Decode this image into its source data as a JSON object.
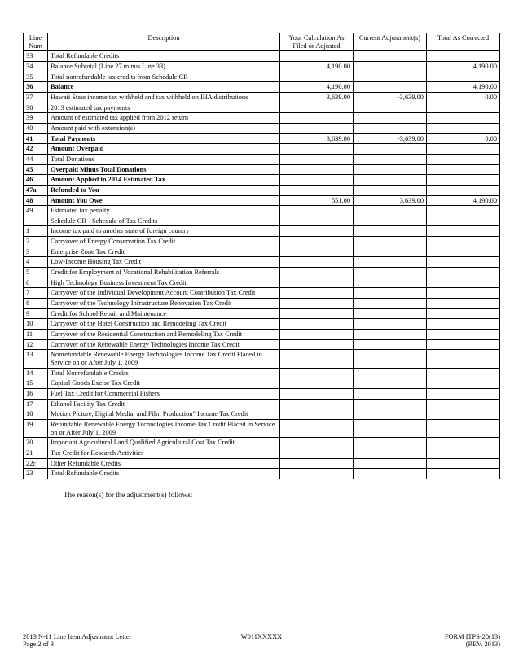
{
  "columns": {
    "line": "Line Num",
    "desc": "Description",
    "yc": "Your Calculation As Filed or Adjusted",
    "ca": "Current Adjustment(s)",
    "tc": "Total As Corrected"
  },
  "rows": [
    {
      "line": "33",
      "desc": "Total Refundable Credits"
    },
    {
      "line": "34",
      "desc": "Balance Subtotal (Line 27 minus Line 33)",
      "yc": "4,190.00",
      "tc": "4,190.00"
    },
    {
      "line": "35",
      "desc": "Total nonrefundable tax credits from Schedule CR"
    },
    {
      "line": "36",
      "desc": "Balance",
      "bold": true,
      "indent": true,
      "yc": "4,190.00",
      "tc": "4,190.00"
    },
    {
      "line": "37",
      "desc": "Hawaii State income tax withheld and tax withheld on IHA distributions",
      "yc": "3,639.00",
      "ca": "-3,639.00",
      "tc": "0.00"
    },
    {
      "line": "38",
      "desc": "2013 estimated tax payments"
    },
    {
      "line": "39",
      "desc": "Amount of estimated tax applied from 2012 return"
    },
    {
      "line": "40",
      "desc": "Amount paid with extension(s)"
    },
    {
      "line": "41",
      "desc": "Total Payments",
      "bold": true,
      "indent": true,
      "yc": "3,639.00",
      "ca": "-3,639.00",
      "tc": "0.00"
    },
    {
      "line": "42",
      "desc": "Amount Overpaid",
      "bold": true,
      "indent": true
    },
    {
      "line": "44",
      "desc": "Total Donations"
    },
    {
      "line": "45",
      "desc": "Overpaid Minus Total Donations",
      "bold": true,
      "indent": true
    },
    {
      "line": "46",
      "desc": "Amount Applied to 2014 Estimated Tax",
      "bold": true,
      "indent": true
    },
    {
      "line": "47a",
      "desc": "Refunded to You",
      "bold": true,
      "indent": true
    },
    {
      "line": "48",
      "desc": "Amount You Owe",
      "bold": true,
      "indent": true,
      "yc": "551.00",
      "ca": "3,639.00",
      "tc": "4,190.00"
    },
    {
      "line": "49",
      "desc": "Estimated tax penalty"
    },
    {
      "line": "",
      "desc": "Schedule CR - Schedule of Tax Credits"
    },
    {
      "line": "1",
      "desc": "Income tax paid to another state of foreign country"
    },
    {
      "line": "2",
      "desc": "Carryover of Energy Conservation Tax Credit"
    },
    {
      "line": "3",
      "desc": "Enterprise Zone Tax Credit"
    },
    {
      "line": "4",
      "desc": "Low-Income Housing Tax Credit"
    },
    {
      "line": "5",
      "desc": "Credit for Employment of Vocational Rehabilitation Referrals"
    },
    {
      "line": "6",
      "desc": "High Technology Business Investment Tax Credit"
    },
    {
      "line": "7",
      "desc": "Carryover of the Individual Development Account Contribution Tax Credit"
    },
    {
      "line": "8",
      "desc": "Carryover of the Technology Infrastructure Renovation Tax Credit"
    },
    {
      "line": "9",
      "desc": "Credit for School Repair and Maintenance"
    },
    {
      "line": "10",
      "desc": "Carryover of the Hotel Construction and Remodeling Tax Credit"
    },
    {
      "line": "11",
      "desc": "Carryover of the Residential Construction and Remodeling Tax Credit"
    },
    {
      "line": "12",
      "desc": "Carryover of the Renewable Energy Technologies Income Tax Credit"
    },
    {
      "line": "13",
      "desc": "Nonrefundable Renewable Energy Technologies Income Tax Credit Placed in Service on or After July 1, 2009"
    },
    {
      "line": "14",
      "desc": "Total Nonrefundable Credits"
    },
    {
      "line": "15",
      "desc": "Capital Goods Excise Tax Credit"
    },
    {
      "line": "16",
      "desc": "Fuel Tax Credit for Commercial Fishers"
    },
    {
      "line": "17",
      "desc": "Ethanol Facility Tax Credit"
    },
    {
      "line": "18",
      "desc": "Motion Picture, Digital Media, and Film Production\" Income Tax Credit"
    },
    {
      "line": "19",
      "desc": "Refundable Renewable Energy Technologies Income Tax Credit Placed in Service on or After July 1, 2009"
    },
    {
      "line": "20",
      "desc": "Important Agricultural Land Qualified Agricultural Cost Tax Credit"
    },
    {
      "line": "21",
      "desc": "Tax Credit for Research Activities"
    },
    {
      "line": "22c",
      "desc": "Other Refundable Credits"
    },
    {
      "line": "23",
      "desc": "Total Refundable Credits"
    }
  ],
  "reason_text": "The reason(s) for the adjustment(s) follows:",
  "footer": {
    "left1": "2013 N-11 Line Item Adjustment Letter",
    "left2": "Page 2 of 3",
    "mid": "W011XXXXX",
    "right1": "FORM ITPS-20(13)",
    "right2": "(REV. 2013)"
  }
}
